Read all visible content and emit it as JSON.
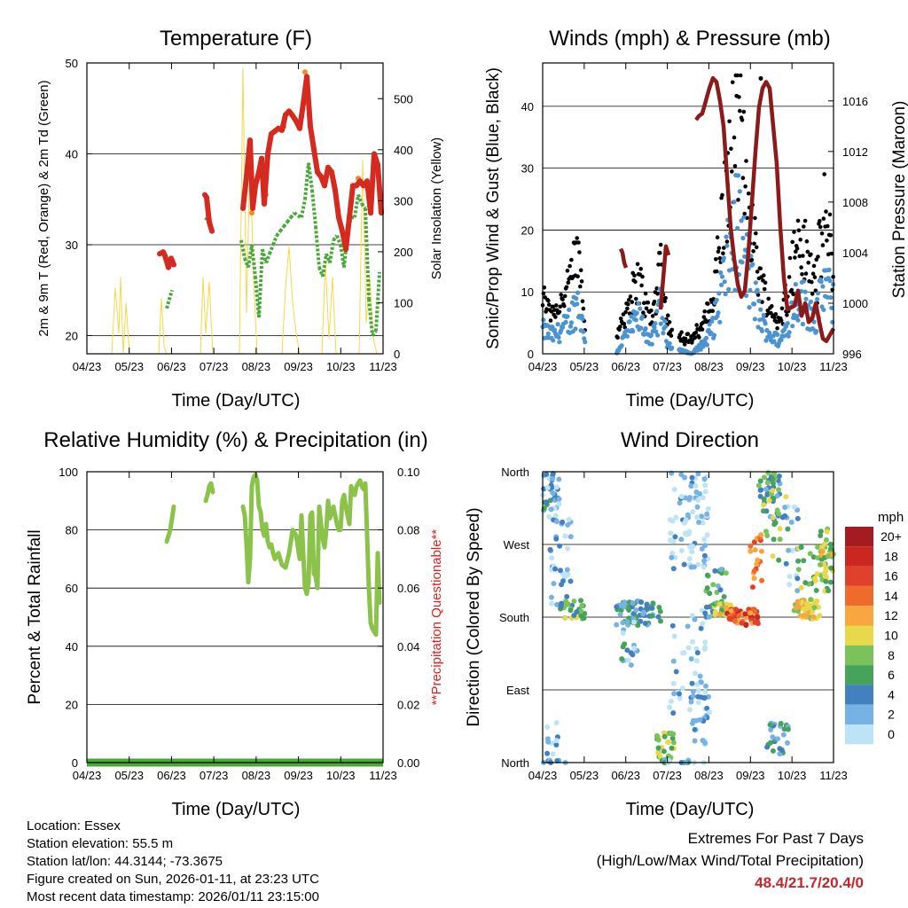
{
  "x_ticks": [
    "04/23",
    "05/23",
    "06/23",
    "07/23",
    "08/23",
    "09/23",
    "10/23",
    "11/23"
  ],
  "chart_data": [
    {
      "type": "line",
      "title": "Temperature (F)",
      "xlabel": "Time (Day/UTC)",
      "ylabel": "2m & 9m T (Red, Orange) & 2m Td (Green)",
      "ylabel_right": "Solar Insolation (Yellow)",
      "ylim": [
        18,
        50
      ],
      "yticks": [
        20,
        30,
        40,
        50
      ],
      "ylim_right": [
        0,
        570
      ],
      "yticks_right": [
        0,
        100,
        200,
        300,
        400,
        500
      ],
      "grid": true,
      "series": [
        {
          "name": "2m T",
          "color": "#d42a1f",
          "x": [
            180,
            184,
            186,
            190,
            193,
            196,
            231,
            233,
            236,
            239,
            274,
            278,
            282,
            285,
            288,
            292,
            295,
            298,
            302,
            306,
            310,
            314,
            318,
            322,
            326,
            330,
            334,
            338,
            342,
            346,
            350,
            354,
            358,
            362,
            366,
            370,
            374,
            378,
            382,
            386,
            390,
            394,
            398,
            402,
            406,
            410,
            414,
            418,
            422,
            426,
            430
          ],
          "y": [
            29,
            29.2,
            28.8,
            27.5,
            28.5,
            27.8,
            35.5,
            35.2,
            32.5,
            31.5,
            34,
            37.5,
            41.5,
            34,
            36.5,
            38,
            39.5,
            34.5,
            40,
            42.2,
            42.5,
            42.8,
            42.6,
            44.3,
            44.7,
            44.2,
            43.6,
            42.8,
            45.5,
            48.5,
            43,
            40.5,
            38,
            37.5,
            36.5,
            38.5,
            38,
            36,
            33,
            31.5,
            29.5,
            33,
            36.5,
            36.5,
            37,
            36.5,
            37,
            33.5,
            40,
            38.8,
            33.5
          ]
        },
        {
          "name": "9m T",
          "color": "#f08a2a",
          "x": [
            284,
            300,
            320,
            344,
            404
          ],
          "y": [
            33.5,
            35.5,
            43,
            49,
            37.3
          ]
        },
        {
          "name": "2m Td",
          "color": "#4aa83a",
          "x": [
            188,
            194,
            232,
            238,
            272,
            276,
            280,
            284,
            288,
            292,
            296,
            300,
            304,
            308,
            312,
            316,
            320,
            324,
            328,
            332,
            336,
            340,
            344,
            348,
            352,
            356,
            360,
            364,
            368,
            372,
            376,
            380,
            384,
            388,
            392,
            396,
            400,
            404,
            408,
            412,
            416,
            420,
            424,
            428
          ],
          "y": [
            23,
            25,
            33,
            32,
            30.5,
            28.5,
            27.5,
            30,
            26.5,
            22,
            29.5,
            28,
            29,
            30,
            31,
            31.5,
            32,
            32.5,
            33,
            33.5,
            33.2,
            33,
            35,
            39,
            36,
            32,
            27.5,
            26.5,
            29,
            28,
            30.5,
            31,
            30,
            27.5,
            31.5,
            33,
            33,
            35.5,
            34.5,
            34,
            24,
            20,
            20.5,
            27
          ]
        },
        {
          "name": "Solar Insolation",
          "color": "#f5d84a",
          "right_axis": true,
          "x": [
            126,
            130,
            134,
            136,
            139,
            142,
            146,
            179,
            182,
            185,
            188,
            226,
            229,
            232,
            236,
            240,
            270,
            274,
            278,
            282,
            286,
            290,
            318,
            322,
            326,
            330,
            334,
            338,
            363,
            367,
            371,
            375,
            379,
            405,
            409,
            413,
            417,
            421,
            425,
            429
          ],
          "y": [
            0,
            130,
            40,
            150,
            0,
            100,
            0,
            0,
            110,
            15,
            0,
            0,
            150,
            40,
            140,
            0,
            0,
            560,
            80,
            400,
            140,
            0,
            0,
            130,
            210,
            100,
            40,
            0,
            0,
            180,
            30,
            150,
            0,
            0,
            380,
            60,
            150,
            30,
            0,
            0
          ]
        }
      ]
    },
    {
      "type": "scatter",
      "title": "Winds (mph) & Pressure (mb)",
      "xlabel": "Time (Day/UTC)",
      "ylabel": "Sonic/Prop Wind & Gust (Blue, Black)",
      "ylabel_right": "Station Pressure (Maroon)",
      "ylim": [
        0,
        47
      ],
      "yticks": [
        0,
        10,
        20,
        30,
        40
      ],
      "ylim_right": [
        996,
        1019
      ],
      "yticks_right": [
        996,
        1000,
        1004,
        1008,
        1012,
        1016
      ],
      "grid": true,
      "series": [
        {
          "name": "Sonic/Prop Wind",
          "color": "#4b94d1"
        },
        {
          "name": "Gust",
          "color": "#000000"
        },
        {
          "name": "Station Pressure",
          "color": "#8b1a1a",
          "right_axis": true,
          "x": [
            700,
            702,
            704,
            706,
            745,
            748,
            751,
            754,
            785,
            788,
            792,
            796,
            800,
            804,
            808,
            812,
            816,
            820,
            824,
            828,
            832,
            836,
            840,
            844,
            848,
            852,
            856,
            860,
            864,
            868,
            872,
            876,
            880,
            884,
            888,
            896,
            900,
            904,
            908,
            912,
            916,
            920,
            924,
            928,
            932,
            936,
            940
          ],
          "y": [
            1004.3,
            1004,
            1003.2,
            1002.8,
            999.5,
            1002,
            1004.5,
            1003.8,
            1014.5,
            1014.8,
            1015,
            1016,
            1017,
            1017.8,
            1017.5,
            1016,
            1014,
            1010,
            1006,
            1003.5,
            1001.5,
            1000.5,
            1001,
            1004,
            1008,
            1012,
            1015.5,
            1017,
            1017.5,
            1017,
            1014,
            1011,
            1006,
            1002,
            999.5,
            999.8,
            1001,
            999,
            1000,
            998.5,
            998.8,
            1000,
            998.5,
            997.2,
            997,
            997.5,
            998
          ]
        }
      ]
    },
    {
      "type": "line",
      "title": "Relative Humidity (%) & Precipitation (in)",
      "xlabel": "Time (Day/UTC)",
      "ylabel": "Percent & Total Rainfall",
      "ylabel_right": "**Precipitation Questionable**",
      "ylim": [
        0,
        100
      ],
      "yticks": [
        0,
        20,
        40,
        60,
        80,
        100
      ],
      "ylim_right": [
        0,
        0.1
      ],
      "yticks_right": [
        "0.00",
        "0.02",
        "0.04",
        "0.06",
        "0.08",
        "0.10"
      ],
      "grid": true,
      "series": [
        {
          "name": "Relative Humidity",
          "color": "#8bc34a",
          "segments": [
            {
              "x": [
                188,
                190,
                192,
                194,
                196
              ],
              "y": [
                76,
                78,
                80,
                84,
                88
              ]
            },
            {
              "x": [
                232,
                234,
                236,
                238,
                240
              ],
              "y": [
                90,
                92,
                95,
                96,
                93
              ]
            },
            {
              "x": [
                274,
                276,
                278,
                280,
                282,
                284,
                286,
                288,
                290,
                292,
                294,
                296,
                298,
                300,
                302,
                304,
                306,
                308,
                310,
                314,
                318,
                322,
                326,
                330,
                334,
                338,
                340,
                342,
                344,
                346,
                348,
                350,
                352,
                354,
                356,
                358,
                360,
                362,
                364,
                366,
                368,
                370,
                372,
                374,
                376,
                378,
                380,
                382,
                384,
                386,
                388,
                390,
                392,
                394,
                396,
                398,
                400,
                402,
                404,
                406,
                408,
                410,
                412,
                414,
                416,
                418,
                420,
                422,
                424,
                426,
                428
              ],
              "y": [
                88,
                85,
                75,
                62,
                70,
                95,
                98,
                99,
                97,
                88,
                86,
                80,
                78,
                82,
                76,
                74,
                75,
                72,
                70,
                72,
                68,
                67,
                72,
                80,
                78,
                70,
                85,
                72,
                60,
                58,
                62,
                85,
                86,
                65,
                64,
                60,
                88,
                82,
                77,
                74,
                80,
                90,
                84,
                86,
                88,
                85,
                82,
                80,
                80,
                90,
                92,
                88,
                85,
                82,
                95,
                93,
                92,
                95,
                96,
                97,
                95,
                94,
                96,
                78,
                60,
                48,
                46,
                45,
                44,
                72,
                55
              ]
            }
          ]
        },
        {
          "name": "Total Precipitation",
          "color": "#4aa83a",
          "right_axis": true,
          "x": [
            98,
            432
          ],
          "y": [
            0,
            0
          ]
        }
      ]
    },
    {
      "type": "scatter",
      "title": "Wind Direction",
      "xlabel": "Time (Day/UTC)",
      "ylabel": "Direction (Colored By Speed)",
      "ylim": [
        0,
        360
      ],
      "ytick_labels": [
        "North",
        "East",
        "South",
        "West",
        "North"
      ],
      "grid": true,
      "legend": {
        "title": "mph",
        "labels": [
          "20+",
          "18",
          "16",
          "14",
          "12",
          "10",
          "8",
          "6",
          "4",
          "2",
          "0"
        ],
        "colors": [
          "#a51c20",
          "#c9271f",
          "#e0412c",
          "#ef6b2c",
          "#f9a640",
          "#e8d84b",
          "#7cc25a",
          "#46a35c",
          "#4280bf",
          "#76b2e3",
          "#bde3f6"
        ]
      }
    }
  ],
  "info": {
    "location": "Location: Essex",
    "elevation": "Station elevation: 55.5 m",
    "latlon": "Station lat/lon: 44.3144; -73.3675",
    "created": "Figure created on Sun, 2026-01-11, at 23:23 UTC",
    "recent": "Most recent data timestamp: 2026/01/11 23:15:00"
  },
  "extremes": {
    "title": "Extremes For Past 7 Days",
    "subtitle": "(High/Low/Max Wind/Total Precipitation)",
    "values": "48.4/21.7/20.4/0"
  }
}
